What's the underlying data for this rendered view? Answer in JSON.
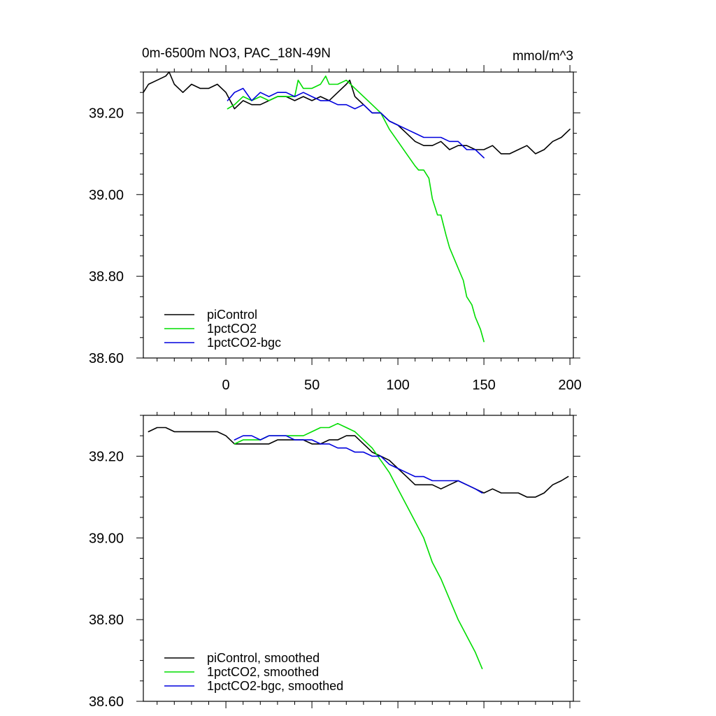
{
  "chart_data": [
    {
      "type": "line",
      "panel": "top",
      "title": "0m-6500m NO3, PAC_18N-49N",
      "units": "mmol/m^3",
      "xlim": [
        -48,
        202
      ],
      "ylim": [
        38.6,
        39.3
      ],
      "x_ticks": [
        0,
        50,
        100,
        150,
        200
      ],
      "x_tick_labels": [
        "0",
        "50",
        "100",
        "150",
        "200"
      ],
      "y_ticks": [
        38.6,
        38.8,
        39.0,
        39.2
      ],
      "y_tick_labels": [
        "38.60",
        "38.80",
        "39.00",
        "39.20"
      ],
      "grid": false,
      "legend_position": "bottom-left",
      "series": [
        {
          "name": "piControl",
          "color": "#000000",
          "x": [
            -48,
            -45,
            -40,
            -35,
            -33,
            -30,
            -25,
            -20,
            -15,
            -10,
            -5,
            0,
            5,
            10,
            15,
            20,
            25,
            30,
            35,
            40,
            45,
            50,
            55,
            60,
            65,
            70,
            72,
            75,
            80,
            85,
            90,
            95,
            100,
            105,
            110,
            115,
            120,
            125,
            130,
            135,
            140,
            145,
            150,
            155,
            160,
            165,
            170,
            175,
            180,
            185,
            190,
            195,
            200
          ],
          "values": [
            39.25,
            39.27,
            39.28,
            39.29,
            39.3,
            39.27,
            39.25,
            39.27,
            39.26,
            39.26,
            39.27,
            39.25,
            39.21,
            39.23,
            39.22,
            39.22,
            39.23,
            39.24,
            39.24,
            39.23,
            39.24,
            39.23,
            39.24,
            39.23,
            39.25,
            39.27,
            39.28,
            39.24,
            39.22,
            39.2,
            39.2,
            39.18,
            39.17,
            39.15,
            39.13,
            39.12,
            39.12,
            39.13,
            39.11,
            39.12,
            39.12,
            39.11,
            39.11,
            39.12,
            39.1,
            39.1,
            39.11,
            39.12,
            39.1,
            39.11,
            39.13,
            39.14,
            39.16
          ]
        },
        {
          "name": "1pctCO2",
          "color": "#00dd00",
          "x": [
            1,
            5,
            10,
            15,
            20,
            25,
            30,
            35,
            40,
            42,
            45,
            50,
            55,
            58,
            60,
            65,
            70,
            75,
            80,
            85,
            90,
            95,
            100,
            105,
            110,
            112,
            115,
            118,
            120,
            123,
            125,
            128,
            130,
            133,
            135,
            138,
            140,
            143,
            145,
            148,
            150
          ],
          "values": [
            39.21,
            39.22,
            39.24,
            39.23,
            39.24,
            39.23,
            39.24,
            39.24,
            39.24,
            39.28,
            39.26,
            39.26,
            39.27,
            39.29,
            39.27,
            39.27,
            39.28,
            39.26,
            39.24,
            39.22,
            39.2,
            39.16,
            39.13,
            39.1,
            39.07,
            39.06,
            39.06,
            39.04,
            38.99,
            38.95,
            38.95,
            38.9,
            38.87,
            38.84,
            38.82,
            38.79,
            38.75,
            38.73,
            38.7,
            38.67,
            38.64
          ]
        },
        {
          "name": "1pctCO2-bgc",
          "color": "#0000dd",
          "x": [
            1,
            5,
            10,
            15,
            20,
            25,
            30,
            35,
            40,
            45,
            50,
            55,
            60,
            65,
            70,
            75,
            80,
            85,
            90,
            95,
            100,
            105,
            110,
            115,
            120,
            125,
            130,
            135,
            140,
            145,
            150
          ],
          "values": [
            39.23,
            39.25,
            39.26,
            39.23,
            39.25,
            39.24,
            39.25,
            39.25,
            39.24,
            39.25,
            39.24,
            39.23,
            39.23,
            39.22,
            39.22,
            39.21,
            39.22,
            39.2,
            39.2,
            39.18,
            39.17,
            39.16,
            39.15,
            39.14,
            39.14,
            39.14,
            39.13,
            39.13,
            39.11,
            39.11,
            39.09
          ]
        }
      ]
    },
    {
      "type": "line",
      "panel": "bottom",
      "xlim": [
        -48,
        202
      ],
      "ylim": [
        38.6,
        39.3
      ],
      "y_ticks": [
        38.6,
        38.8,
        39.0,
        39.2
      ],
      "y_tick_labels": [
        "38.60",
        "38.80",
        "39.00",
        "39.20"
      ],
      "grid": false,
      "legend_position": "bottom-left",
      "series": [
        {
          "name": "piControl, smoothed",
          "color": "#000000",
          "x": [
            -45,
            -40,
            -35,
            -30,
            -25,
            -20,
            -15,
            -10,
            -5,
            0,
            5,
            10,
            15,
            20,
            25,
            30,
            35,
            40,
            45,
            50,
            55,
            60,
            65,
            70,
            75,
            80,
            85,
            90,
            95,
            100,
            105,
            110,
            115,
            120,
            125,
            130,
            135,
            140,
            145,
            150,
            155,
            160,
            165,
            170,
            175,
            180,
            185,
            190,
            195,
            199
          ],
          "values": [
            39.26,
            39.27,
            39.27,
            39.26,
            39.26,
            39.26,
            39.26,
            39.26,
            39.26,
            39.25,
            39.23,
            39.23,
            39.23,
            39.23,
            39.23,
            39.24,
            39.24,
            39.24,
            39.24,
            39.23,
            39.23,
            39.24,
            39.24,
            39.25,
            39.25,
            39.23,
            39.21,
            39.2,
            39.19,
            39.17,
            39.15,
            39.13,
            39.13,
            39.13,
            39.12,
            39.13,
            39.14,
            39.13,
            39.12,
            39.11,
            39.12,
            39.11,
            39.11,
            39.11,
            39.1,
            39.1,
            39.11,
            39.13,
            39.14,
            39.15
          ]
        },
        {
          "name": "1pctCO2, smoothed",
          "color": "#00dd00",
          "x": [
            5,
            10,
            15,
            20,
            25,
            30,
            35,
            40,
            45,
            50,
            55,
            60,
            65,
            70,
            75,
            80,
            85,
            90,
            95,
            100,
            105,
            110,
            115,
            120,
            125,
            130,
            135,
            140,
            145,
            149
          ],
          "values": [
            39.23,
            39.24,
            39.24,
            39.24,
            39.25,
            39.25,
            39.25,
            39.25,
            39.25,
            39.26,
            39.27,
            39.27,
            39.28,
            39.27,
            39.26,
            39.24,
            39.22,
            39.19,
            39.16,
            39.12,
            39.08,
            39.04,
            39.0,
            38.94,
            38.9,
            38.85,
            38.8,
            38.76,
            38.72,
            38.68
          ]
        },
        {
          "name": "1pctCO2-bgc, smoothed",
          "color": "#0000dd",
          "x": [
            5,
            10,
            15,
            20,
            25,
            30,
            35,
            40,
            45,
            50,
            55,
            60,
            65,
            70,
            75,
            80,
            85,
            90,
            95,
            100,
            105,
            110,
            115,
            120,
            125,
            130,
            135,
            140,
            145,
            149
          ],
          "values": [
            39.24,
            39.25,
            39.25,
            39.24,
            39.25,
            39.25,
            39.25,
            39.24,
            39.24,
            39.24,
            39.23,
            39.23,
            39.22,
            39.22,
            39.21,
            39.21,
            39.2,
            39.2,
            39.18,
            39.17,
            39.16,
            39.15,
            39.15,
            39.14,
            39.14,
            39.14,
            39.14,
            39.13,
            39.12,
            39.11
          ]
        }
      ]
    }
  ]
}
